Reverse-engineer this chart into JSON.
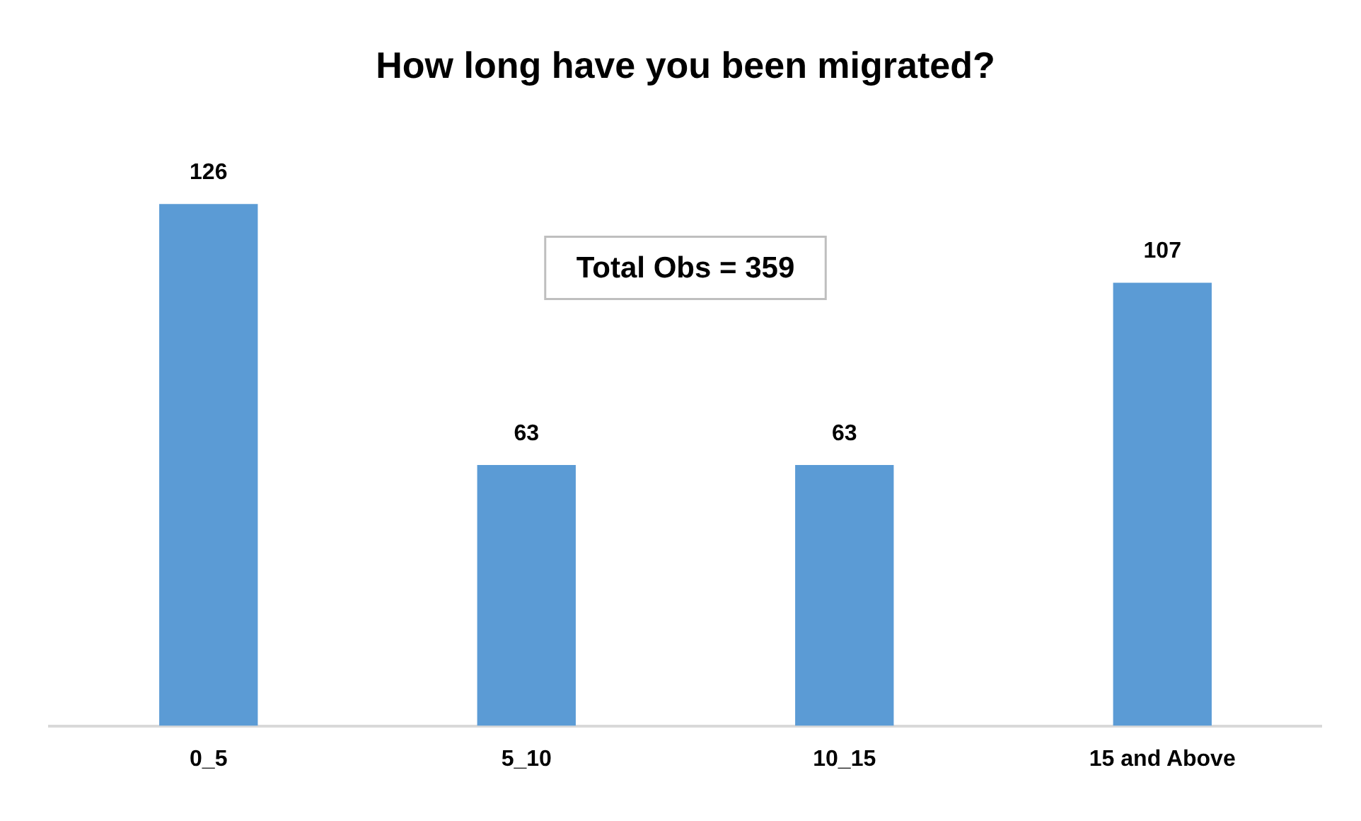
{
  "chart_data": {
    "type": "bar",
    "title": "How long have you been migrated?",
    "categories": [
      "0_5",
      "5_10",
      "10_15",
      "15 and Above"
    ],
    "values": [
      126,
      63,
      63,
      107
    ],
    "color": "#5b9bd5",
    "data_labels": true,
    "grid": false,
    "legend": false,
    "annotations": [
      "Total Obs = 359"
    ]
  }
}
